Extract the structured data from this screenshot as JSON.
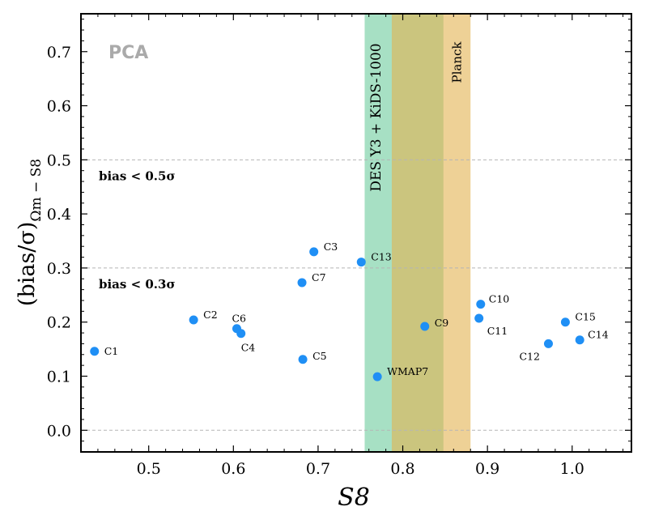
{
  "chart_data": {
    "type": "scatter",
    "panel_tag": "PCA",
    "xlabel": "S8",
    "ylabel": "(bias/σ)",
    "ylabel_subscript": "Ωm − S8",
    "xlim": [
      0.42,
      1.07
    ],
    "ylim": [
      -0.04,
      0.77
    ],
    "xticks": [
      0.5,
      0.6,
      0.7,
      0.8,
      0.9,
      1.0
    ],
    "xtick_labels": [
      "0.5",
      "0.6",
      "0.7",
      "0.8",
      "0.9",
      "1.0"
    ],
    "yticks": [
      0.0,
      0.1,
      0.2,
      0.3,
      0.4,
      0.5,
      0.6,
      0.7
    ],
    "ytick_labels": [
      "0.0",
      "0.1",
      "0.2",
      "0.3",
      "0.4",
      "0.5",
      "0.6",
      "0.7"
    ],
    "thresholds": [
      {
        "y": 0.5,
        "label": "bias < 0.5σ"
      },
      {
        "y": 0.3,
        "label": "bias < 0.3σ"
      },
      {
        "y": 0.0,
        "label": ""
      }
    ],
    "bands": [
      {
        "name": "DES Y3 + KiDS-1000",
        "x0": 0.755,
        "x1": 0.848,
        "color": "#6dcb9c"
      },
      {
        "name": "Planck",
        "x0": 0.787,
        "x1": 0.88,
        "color": "#e2b350"
      }
    ],
    "points": [
      {
        "label": "C1",
        "x": 0.436,
        "y": 0.146
      },
      {
        "label": "C2",
        "x": 0.553,
        "y": 0.204
      },
      {
        "label": "C3",
        "x": 0.695,
        "y": 0.33
      },
      {
        "label": "C4",
        "x": 0.609,
        "y": 0.179
      },
      {
        "label": "C5",
        "x": 0.682,
        "y": 0.131
      },
      {
        "label": "C6",
        "x": 0.604,
        "y": 0.188
      },
      {
        "label": "C7",
        "x": 0.681,
        "y": 0.273
      },
      {
        "label": "C9",
        "x": 0.826,
        "y": 0.192
      },
      {
        "label": "C10",
        "x": 0.892,
        "y": 0.233
      },
      {
        "label": "C11",
        "x": 0.89,
        "y": 0.207
      },
      {
        "label": "C12",
        "x": 0.972,
        "y": 0.16
      },
      {
        "label": "C13",
        "x": 0.751,
        "y": 0.311
      },
      {
        "label": "C14",
        "x": 1.009,
        "y": 0.167
      },
      {
        "label": "C15",
        "x": 0.992,
        "y": 0.2
      },
      {
        "label": "WMAP7",
        "x": 0.77,
        "y": 0.099
      }
    ],
    "point_color": "#1f8ff5"
  }
}
